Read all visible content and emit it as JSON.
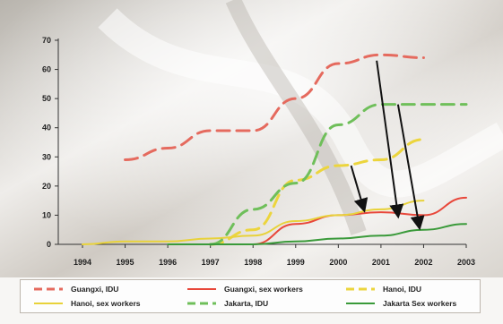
{
  "chart_data": {
    "type": "line",
    "x": [
      "1994",
      "1995",
      "1996",
      "1997",
      "1998",
      "1999",
      "2000",
      "2001",
      "2002",
      "2003"
    ],
    "ylim": [
      0,
      70
    ],
    "yticks": [
      0,
      10,
      20,
      30,
      40,
      50,
      60,
      70
    ],
    "grid": false,
    "legend_position": "bottom",
    "series": [
      {
        "name": "Guangxi, IDU",
        "color": "#e56a5e",
        "style": "dashed",
        "values": [
          null,
          29,
          33,
          39,
          39,
          50,
          62,
          65,
          64,
          null
        ]
      },
      {
        "name": "Guangxi, sex workers",
        "color": "#e8473a",
        "style": "solid",
        "values": [
          null,
          null,
          null,
          null,
          0,
          7,
          10,
          11,
          10,
          16
        ]
      },
      {
        "name": "Hanoi, IDU",
        "color": "#ecd53d",
        "style": "dashed",
        "values": [
          null,
          null,
          null,
          0,
          5,
          22,
          27,
          29,
          36,
          null
        ]
      },
      {
        "name": "Hanoi, sex workers",
        "color": "#e8d23a",
        "style": "solid",
        "values": [
          0,
          1,
          1,
          2,
          3,
          8,
          10,
          12,
          15,
          null
        ]
      },
      {
        "name": "Jakarta, IDU",
        "color": "#6fbf5a",
        "style": "dashed",
        "values": [
          null,
          null,
          null,
          0,
          12,
          21,
          41,
          48,
          48,
          48
        ]
      },
      {
        "name": "Jakarta Sex workers",
        "color": "#3a9a3a",
        "style": "solid",
        "values": [
          null,
          null,
          0,
          0,
          0,
          1,
          2,
          3,
          5,
          7
        ]
      }
    ],
    "annotations": [
      {
        "type": "arrow",
        "from": [
          "2000.9",
          63
        ],
        "to": [
          "2001.4",
          10
        ]
      },
      {
        "type": "arrow",
        "from": [
          "2001.4",
          48
        ],
        "to": [
          "2001.9",
          6
        ]
      },
      {
        "type": "arrow",
        "from": [
          "2000.3",
          27
        ],
        "to": [
          "2000.6",
          12
        ]
      }
    ]
  }
}
